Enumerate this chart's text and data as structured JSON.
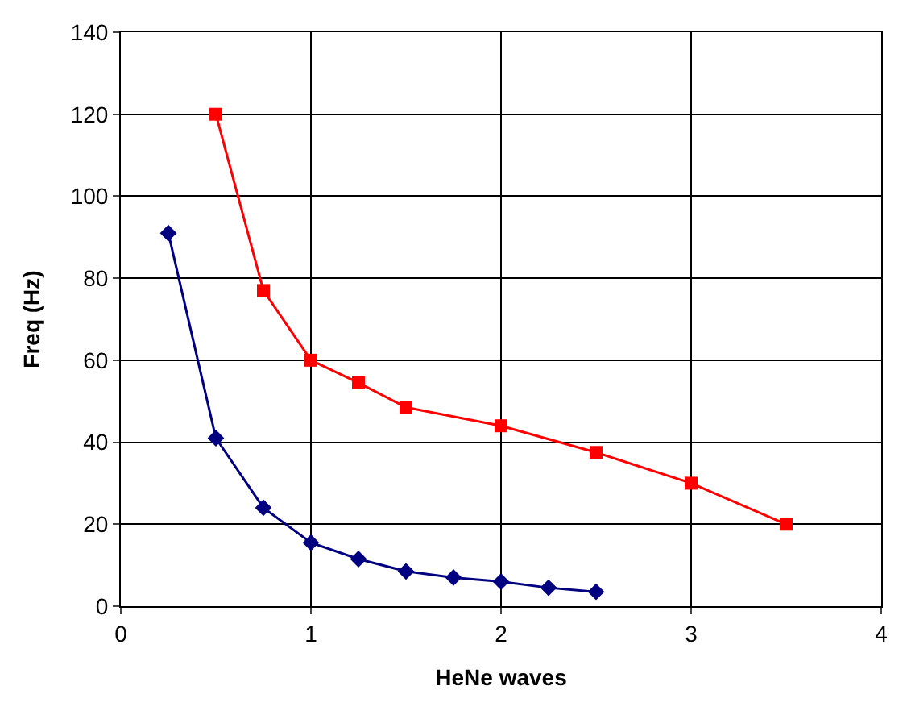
{
  "chart_data": {
    "type": "line",
    "xlabel": "HeNe waves",
    "ylabel": "Freq (Hz)",
    "xlim": [
      0,
      4
    ],
    "xticks": [
      0,
      1,
      2,
      3,
      4
    ],
    "ylim": [
      0,
      140
    ],
    "yticks": [
      0,
      20,
      40,
      60,
      80,
      100,
      120,
      140
    ],
    "grid": true,
    "legend": false,
    "line_style": "solid",
    "series": [
      {
        "color": "#ff0000",
        "marker": "square",
        "x": [
          0.5,
          0.75,
          1,
          1.25,
          1.5,
          2,
          2.5,
          3,
          3.5
        ],
        "values": [
          120,
          77,
          60,
          54.5,
          48.5,
          44,
          37.5,
          30,
          20
        ]
      },
      {
        "color": "#000080",
        "marker": "diamond",
        "x": [
          0.25,
          0.5,
          0.75,
          1,
          1.25,
          1.5,
          1.75,
          2,
          2.25,
          2.5
        ],
        "values": [
          91,
          41,
          24,
          15.5,
          11.5,
          8.5,
          7,
          6,
          4.5,
          3.5
        ]
      }
    ]
  }
}
